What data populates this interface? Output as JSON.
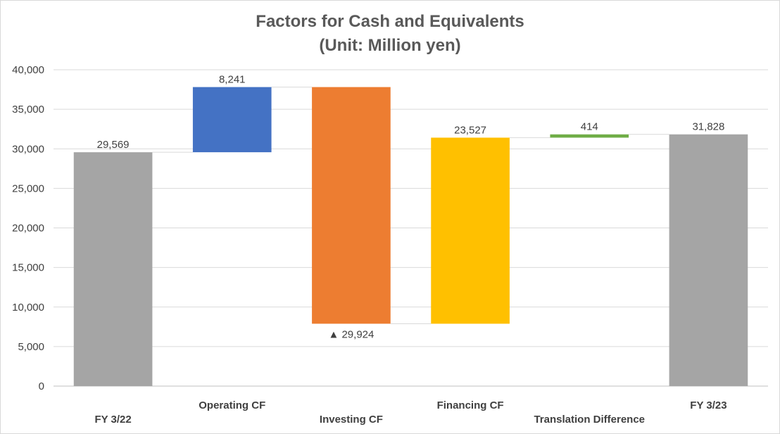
{
  "chart_data": {
    "type": "bar",
    "subtype": "waterfall",
    "title": "Factors for Cash and Equivalents",
    "subtitle": "(Unit: Million yen)",
    "xlabel": "",
    "ylabel": "",
    "ylim": [
      0,
      40000
    ],
    "yticks": [
      "0",
      "5,000",
      "10,000",
      "15,000",
      "20,000",
      "25,000",
      "30,000",
      "35,000",
      "40,000"
    ],
    "grid": true,
    "categories": [
      "FY 3/22",
      "Operating CF",
      "Investing CF",
      "Financing CF",
      "Translation Difference",
      "FY 3/23"
    ],
    "bars": [
      {
        "category": "FY 3/22",
        "kind": "total",
        "start": 0,
        "end": 29569,
        "label": "29,569",
        "color": "#a5a5a5"
      },
      {
        "category": "Operating CF",
        "kind": "change",
        "start": 29569,
        "end": 37810,
        "label": "8,241",
        "color": "#4472c4"
      },
      {
        "category": "Investing CF",
        "kind": "change",
        "start": 37810,
        "end": 7886,
        "label": "▲ 29,924",
        "color": "#ed7d31"
      },
      {
        "category": "Financing CF",
        "kind": "change",
        "start": 7886,
        "end": 31413,
        "label": "23,527",
        "color": "#ffc000"
      },
      {
        "category": "Translation Difference",
        "kind": "change",
        "start": 31413,
        "end": 31828,
        "label": "414",
        "color": "#70ad47"
      },
      {
        "category": "FY 3/23",
        "kind": "total",
        "start": 0,
        "end": 31828,
        "label": "31,828",
        "color": "#a5a5a5"
      }
    ]
  }
}
